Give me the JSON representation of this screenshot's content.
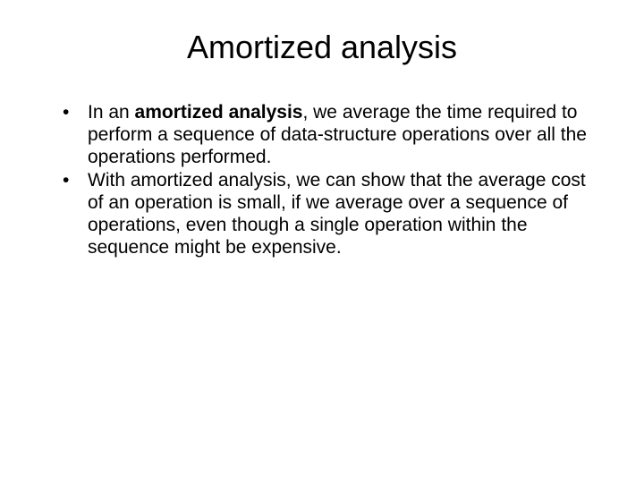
{
  "slide": {
    "title": "Amortized analysis",
    "title_fontsize": 36,
    "title_color": "#000000",
    "body_fontsize": 21,
    "body_color": "#000000",
    "background_color": "#ffffff",
    "bullets": [
      {
        "prefix": "In an ",
        "bold": "amortized analysis",
        "suffix": ", we average the time required to perform a sequence of data-structure operations over all the operations performed."
      },
      {
        "prefix": "",
        "bold": "",
        "suffix": "With amortized analysis, we can show that the average cost of an operation is small, if we average over a sequence of operations, even though a single operation within the sequence might be expensive."
      }
    ]
  }
}
